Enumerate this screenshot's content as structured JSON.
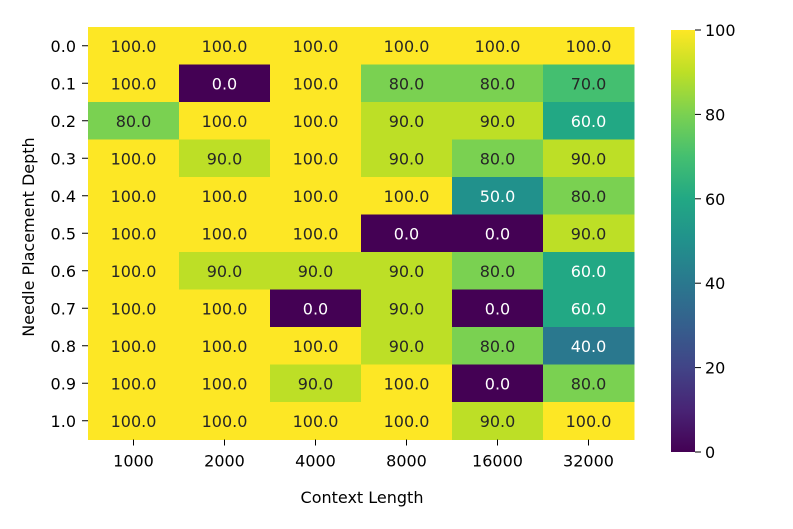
{
  "chart_data": {
    "type": "heatmap",
    "xlabel": "Context Length",
    "ylabel": "Needle Placement Depth",
    "x_categories": [
      "1000",
      "2000",
      "4000",
      "8000",
      "16000",
      "32000"
    ],
    "y_categories": [
      "0.0",
      "0.1",
      "0.2",
      "0.3",
      "0.4",
      "0.5",
      "0.6",
      "0.7",
      "0.8",
      "0.9",
      "1.0"
    ],
    "values": [
      [
        100.0,
        100.0,
        100.0,
        100.0,
        100.0,
        100.0
      ],
      [
        100.0,
        0.0,
        100.0,
        80.0,
        80.0,
        70.0
      ],
      [
        80.0,
        100.0,
        100.0,
        90.0,
        90.0,
        60.0
      ],
      [
        100.0,
        90.0,
        100.0,
        90.0,
        80.0,
        90.0
      ],
      [
        100.0,
        100.0,
        100.0,
        100.0,
        50.0,
        80.0
      ],
      [
        100.0,
        100.0,
        100.0,
        0.0,
        0.0,
        90.0
      ],
      [
        100.0,
        90.0,
        90.0,
        90.0,
        80.0,
        60.0
      ],
      [
        100.0,
        100.0,
        0.0,
        90.0,
        0.0,
        60.0
      ],
      [
        100.0,
        100.0,
        100.0,
        90.0,
        80.0,
        40.0
      ],
      [
        100.0,
        100.0,
        90.0,
        100.0,
        0.0,
        80.0
      ],
      [
        100.0,
        100.0,
        100.0,
        100.0,
        90.0,
        100.0
      ]
    ],
    "colorbar": {
      "colormap": "viridis",
      "range": [
        0,
        100
      ],
      "ticks": [
        "0",
        "20",
        "40",
        "60",
        "80",
        "100"
      ]
    }
  }
}
